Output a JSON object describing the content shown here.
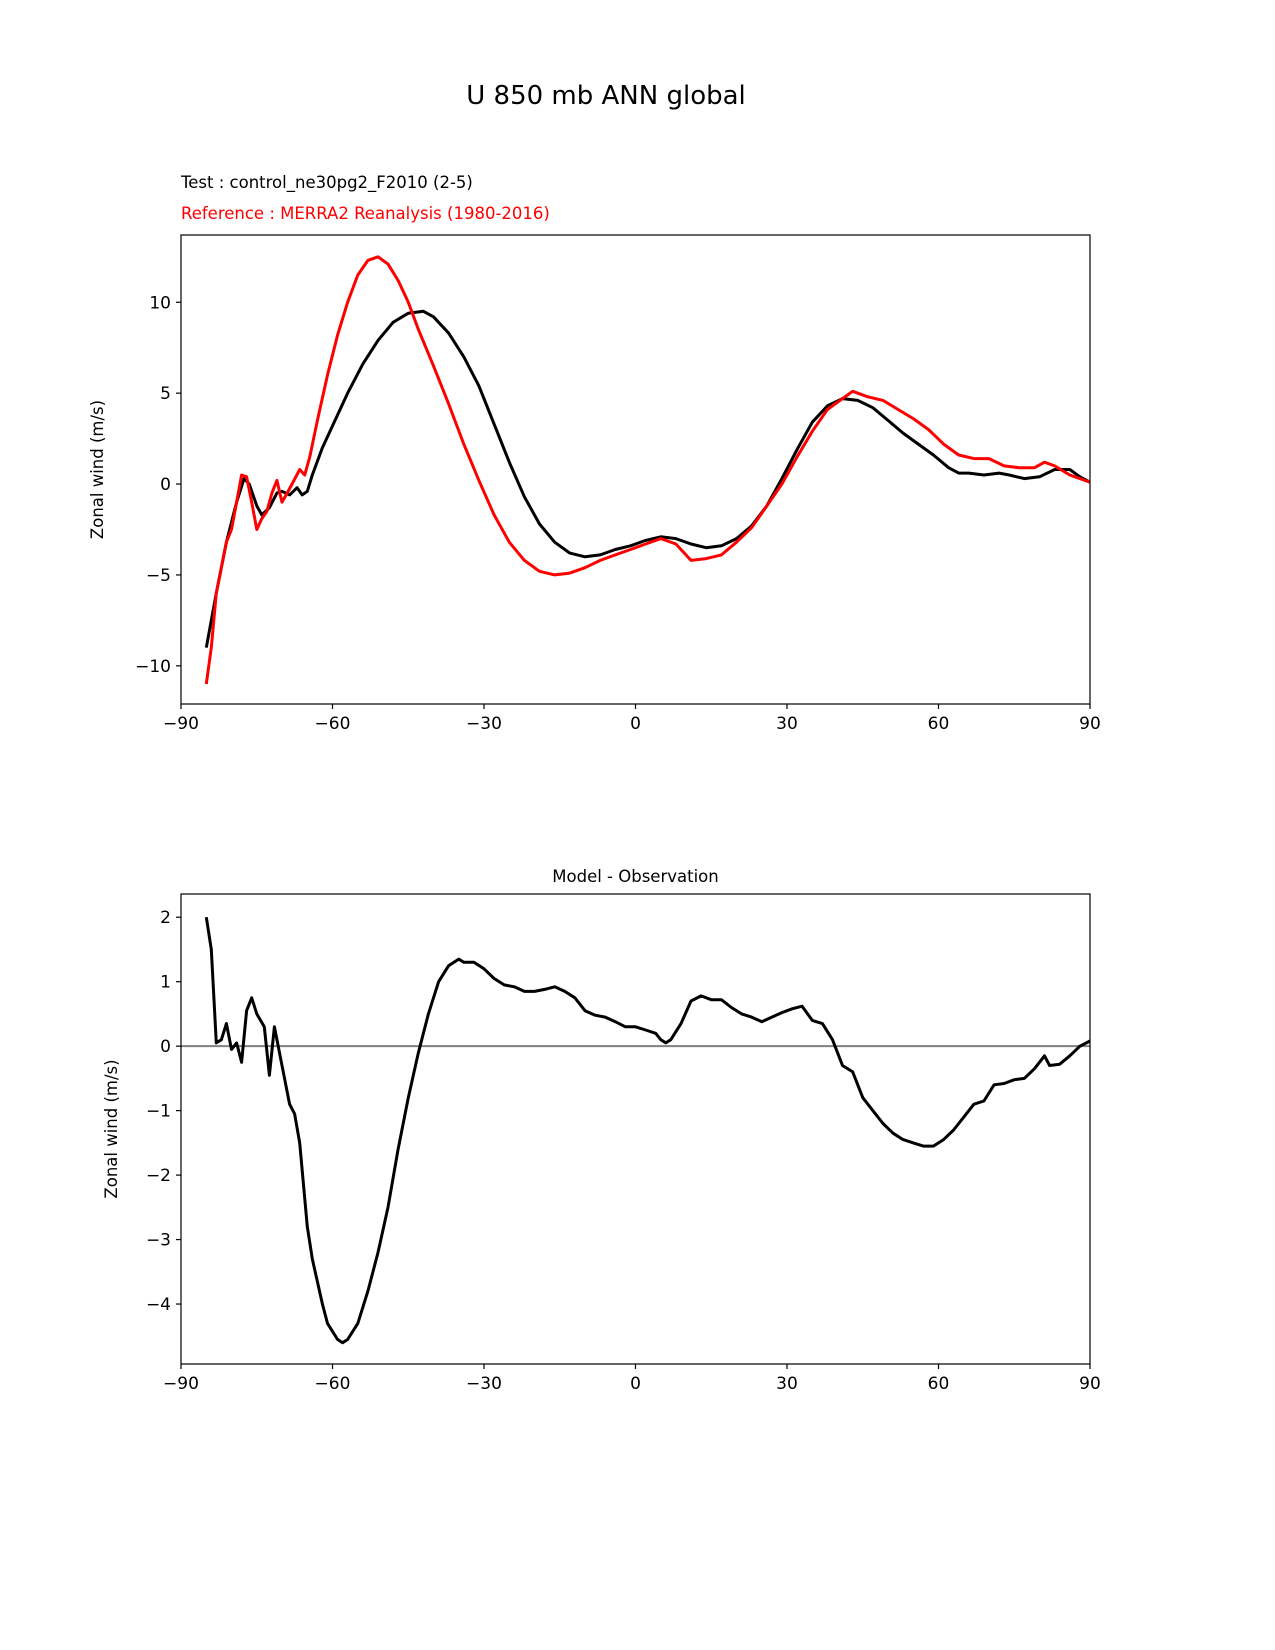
{
  "chart_data": [
    {
      "type": "line",
      "figure_title": "U 850 mb ANN global",
      "test_label": "Test : control_ne30pg2_F2010 (2-5)",
      "reference_label": "Reference : MERRA2 Reanalysis (1980-2016)",
      "xlabel": "",
      "ylabel": "Zonal wind (m/s)",
      "xlim": [
        -90,
        90
      ],
      "ylim": [
        -12.1,
        13.7
      ],
      "xticks": [
        -90,
        -60,
        -30,
        0,
        30,
        60,
        90
      ],
      "xtick_labels": [
        "−90",
        "−60",
        "−30",
        "0",
        "30",
        "60",
        "90"
      ],
      "yticks": [
        -10,
        -5,
        0,
        5,
        10
      ],
      "ytick_labels": [
        "−10",
        "−5",
        "0",
        "5",
        "10"
      ],
      "series": [
        {
          "name": "Test",
          "color": "#000000",
          "x": [
            -85,
            -83,
            -81,
            -79,
            -77.5,
            -76.5,
            -75,
            -74,
            -72.5,
            -71,
            -70,
            -68.5,
            -67,
            -66,
            -65,
            -64,
            -62,
            -60,
            -57,
            -54,
            -51,
            -48,
            -45,
            -42,
            -40,
            -37,
            -34,
            -31,
            -28,
            -25,
            -22,
            -19,
            -16,
            -13,
            -10,
            -7,
            -4,
            -1,
            2,
            5,
            8,
            11,
            14,
            17,
            20,
            23,
            26,
            29,
            32,
            35,
            38,
            41,
            44,
            47,
            50,
            53,
            56,
            59,
            62,
            64,
            66,
            69,
            72,
            74,
            77,
            80,
            83,
            86,
            88,
            90
          ],
          "y": [
            -9,
            -6,
            -3.2,
            -1,
            0.3,
            0,
            -1.2,
            -1.7,
            -1.3,
            -0.5,
            -0.4,
            -0.6,
            -0.2,
            -0.6,
            -0.4,
            0.5,
            2,
            3.2,
            5,
            6.6,
            7.9,
            8.9,
            9.4,
            9.5,
            9.2,
            8.3,
            7,
            5.4,
            3.3,
            1.2,
            -0.7,
            -2.2,
            -3.2,
            -3.8,
            -4,
            -3.9,
            -3.6,
            -3.4,
            -3.1,
            -2.9,
            -3.0,
            -3.3,
            -3.5,
            -3.4,
            -3.0,
            -2.3,
            -1.2,
            0.3,
            1.9,
            3.4,
            4.3,
            4.7,
            4.6,
            4.2,
            3.5,
            2.8,
            2.2,
            1.6,
            0.9,
            0.6,
            0.6,
            0.5,
            0.6,
            0.5,
            0.3,
            0.4,
            0.8,
            0.8,
            0.4,
            0.1
          ]
        },
        {
          "name": "Reference",
          "color": "#ff0000",
          "x": [
            -85,
            -84,
            -83,
            -81,
            -80,
            -79,
            -78,
            -77,
            -76,
            -75,
            -74,
            -73,
            -72,
            -71,
            -70,
            -69,
            -68,
            -66.5,
            -65.5,
            -64.5,
            -63,
            -61,
            -59,
            -57,
            -55,
            -53,
            -51,
            -49,
            -47,
            -45,
            -43,
            -40,
            -37,
            -34,
            -31,
            -28,
            -25,
            -22,
            -19,
            -16,
            -13,
            -10,
            -7,
            -4,
            -1,
            2,
            5,
            8,
            11,
            14,
            17,
            20,
            23,
            26,
            29,
            32,
            35,
            38,
            41,
            43,
            46,
            49,
            52,
            55,
            58,
            61,
            64,
            67,
            70,
            73,
            76,
            79,
            81,
            83,
            86,
            90
          ],
          "y": [
            -11,
            -9,
            -6,
            -3.2,
            -2.5,
            -1,
            0.5,
            0.4,
            -1,
            -2.5,
            -1.9,
            -1.5,
            -0.5,
            0.2,
            -1,
            -0.5,
            0,
            0.8,
            0.5,
            1.5,
            3.5,
            6,
            8.2,
            10,
            11.5,
            12.3,
            12.5,
            12.1,
            11.2,
            10,
            8.5,
            6.5,
            4.4,
            2.2,
            0.2,
            -1.7,
            -3.2,
            -4.2,
            -4.8,
            -5,
            -4.9,
            -4.6,
            -4.2,
            -3.9,
            -3.6,
            -3.3,
            -3.0,
            -3.3,
            -4.2,
            -4.1,
            -3.9,
            -3.2,
            -2.4,
            -1.2,
            0,
            1.5,
            2.9,
            4.1,
            4.7,
            5.1,
            4.8,
            4.6,
            4.1,
            3.6,
            3.0,
            2.2,
            1.6,
            1.4,
            1.4,
            1.0,
            0.9,
            0.9,
            1.2,
            1.0,
            0.5,
            0.1
          ]
        }
      ]
    },
    {
      "type": "line",
      "title": "Model - Observation",
      "xlabel": "",
      "ylabel": "Zonal wind (m/s)",
      "xlim": [
        -90,
        90
      ],
      "ylim": [
        -4.93,
        2.36
      ],
      "xticks": [
        -90,
        -60,
        -30,
        0,
        30,
        60,
        90
      ],
      "xtick_labels": [
        "−90",
        "−60",
        "−30",
        "0",
        "30",
        "60",
        "90"
      ],
      "yticks": [
        -4,
        -3,
        -2,
        -1,
        0,
        1,
        2
      ],
      "ytick_labels": [
        "−4",
        "−3",
        "−2",
        "−1",
        "0",
        "1",
        "2"
      ],
      "zero_line_color": "#808080",
      "series": [
        {
          "name": "Model - Observation",
          "color": "#000000",
          "x": [
            -85,
            -84,
            -83,
            -82,
            -81,
            -80,
            -79,
            -78,
            -77,
            -76,
            -75,
            -73.5,
            -72.5,
            -71.5,
            -70,
            -68.5,
            -67.5,
            -66.5,
            -65,
            -64,
            -62,
            -61,
            -59,
            -58,
            -57,
            -55,
            -53,
            -51,
            -49,
            -47,
            -45,
            -43,
            -41,
            -39,
            -37,
            -35,
            -34,
            -32,
            -30,
            -28,
            -26,
            -24,
            -22,
            -20,
            -18,
            -16,
            -14,
            -12,
            -10,
            -8,
            -6,
            -4,
            -2,
            0,
            2,
            4,
            5,
            6,
            7,
            9,
            11,
            13,
            15,
            17,
            19,
            21,
            23,
            25,
            27,
            29,
            31,
            33,
            35,
            37,
            39,
            41,
            43,
            45,
            47,
            49,
            51,
            53,
            55,
            57,
            59,
            61,
            63,
            65,
            67,
            69,
            71,
            73,
            75,
            77,
            79,
            81,
            82,
            84,
            86,
            88,
            90
          ],
          "y": [
            2.0,
            1.5,
            0.05,
            0.1,
            0.35,
            -0.05,
            0.05,
            -0.25,
            0.55,
            0.75,
            0.5,
            0.3,
            -0.45,
            0.3,
            -0.3,
            -0.9,
            -1.05,
            -1.5,
            -2.8,
            -3.3,
            -4.0,
            -4.3,
            -4.55,
            -4.6,
            -4.55,
            -4.3,
            -3.8,
            -3.2,
            -2.5,
            -1.6,
            -0.8,
            -0.1,
            0.5,
            1.0,
            1.25,
            1.35,
            1.3,
            1.3,
            1.2,
            1.05,
            0.95,
            0.92,
            0.85,
            0.85,
            0.88,
            0.92,
            0.85,
            0.75,
            0.55,
            0.48,
            0.45,
            0.38,
            0.3,
            0.3,
            0.25,
            0.2,
            0.1,
            0.05,
            0.1,
            0.35,
            0.7,
            0.78,
            0.72,
            0.72,
            0.6,
            0.5,
            0.45,
            0.38,
            0.45,
            0.52,
            0.58,
            0.62,
            0.4,
            0.35,
            0.1,
            -0.3,
            -0.4,
            -0.8,
            -1.0,
            -1.2,
            -1.35,
            -1.45,
            -1.5,
            -1.55,
            -1.55,
            -1.45,
            -1.3,
            -1.1,
            -0.9,
            -0.85,
            -0.6,
            -0.58,
            -0.52,
            -0.5,
            -0.35,
            -0.15,
            -0.3,
            -0.28,
            -0.15,
            0,
            0.08
          ]
        }
      ]
    }
  ]
}
